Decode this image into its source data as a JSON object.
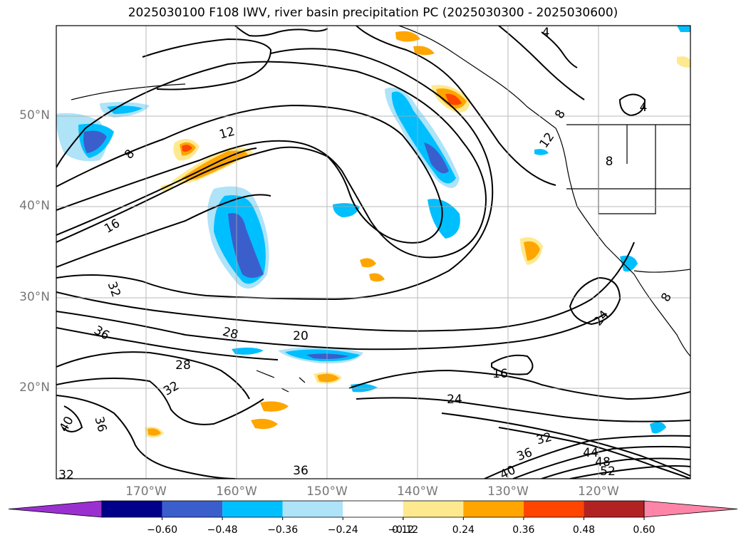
{
  "title": "2025030100 F108 IWV, river basin precipitation PC (2025030300 - 2025030600)",
  "lat_labels": [
    "50°N",
    "40°N",
    "30°N",
    "20°N"
  ],
  "lon_labels": [
    "170°W",
    "160°W",
    "150°W",
    "140°W",
    "130°W",
    "120°W"
  ],
  "contour_labels": [
    "4",
    "4",
    "8",
    "8",
    "8",
    "8",
    "12",
    "12",
    "16",
    "16",
    "20",
    "24",
    "24",
    "28",
    "28",
    "32",
    "32",
    "32",
    "32",
    "36",
    "36",
    "36",
    "36",
    "40",
    "40",
    "44",
    "48",
    "52"
  ],
  "colorbar": {
    "ticks": [
      "−0.60",
      "−0.48",
      "−0.36",
      "−0.24",
      "−0.12",
      "0.12",
      "0.24",
      "0.36",
      "0.48",
      "0.60"
    ],
    "colors": [
      "#9b30d0",
      "#00008b",
      "#3a5fcd",
      "#00bfff",
      "#aee3f8",
      "#ffffff",
      "#ffe98f",
      "#ffa500",
      "#ff4500",
      "#b22222",
      "#ff85a8"
    ]
  }
}
